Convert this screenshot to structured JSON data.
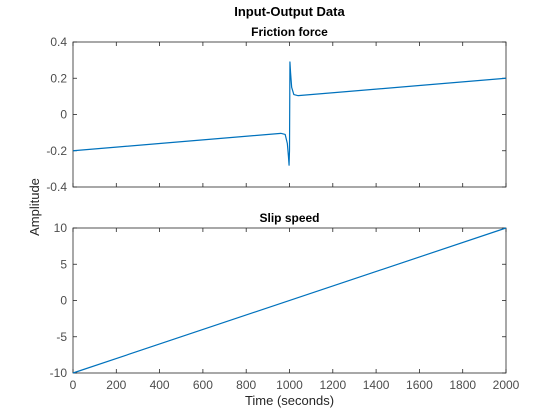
{
  "figure": {
    "title": "Input-Output Data",
    "xlabel": "Time (seconds)",
    "ylabel": "Amplitude"
  },
  "chart_data": [
    {
      "type": "line",
      "title": "Friction force",
      "xlabel": "",
      "ylabel": "",
      "xlim": [
        0,
        2000
      ],
      "ylim": [
        -0.4,
        0.4
      ],
      "xticks": [
        0,
        200,
        400,
        600,
        800,
        1000,
        1200,
        1400,
        1600,
        1800,
        2000
      ],
      "xtick_labels_visible": false,
      "yticks": [
        -0.4,
        -0.2,
        0,
        0.2,
        0.4
      ],
      "ytick_labels": [
        "-0.4",
        "-0.2",
        "0",
        "0.2",
        "0.4"
      ],
      "grid": false,
      "series": [
        {
          "color": "#0072bd",
          "x": [
            0,
            200,
            400,
            600,
            800,
            960,
            980,
            990,
            995,
            998,
            1000,
            1002,
            1005,
            1010,
            1020,
            1040,
            1200,
            1400,
            1600,
            1800,
            2000
          ],
          "y": [
            -0.2,
            -0.18,
            -0.16,
            -0.14,
            -0.12,
            -0.104,
            -0.11,
            -0.16,
            -0.23,
            -0.28,
            -0.2,
            0.29,
            0.23,
            0.15,
            0.11,
            0.104,
            0.12,
            0.14,
            0.16,
            0.18,
            0.2
          ]
        }
      ]
    },
    {
      "type": "line",
      "title": "Slip speed",
      "xlabel": "",
      "ylabel": "",
      "xlim": [
        0,
        2000
      ],
      "ylim": [
        -10,
        10
      ],
      "xticks": [
        0,
        200,
        400,
        600,
        800,
        1000,
        1200,
        1400,
        1600,
        1800,
        2000
      ],
      "xtick_labels": [
        "0",
        "200",
        "400",
        "600",
        "800",
        "1000",
        "1200",
        "1400",
        "1600",
        "1800",
        "2000"
      ],
      "yticks": [
        -10,
        -5,
        0,
        5,
        10
      ],
      "ytick_labels": [
        "-10",
        "-5",
        "0",
        "5",
        "10"
      ],
      "grid": false,
      "series": [
        {
          "color": "#0072bd",
          "x": [
            0,
            2000
          ],
          "y": [
            -10,
            10
          ]
        }
      ]
    }
  ]
}
